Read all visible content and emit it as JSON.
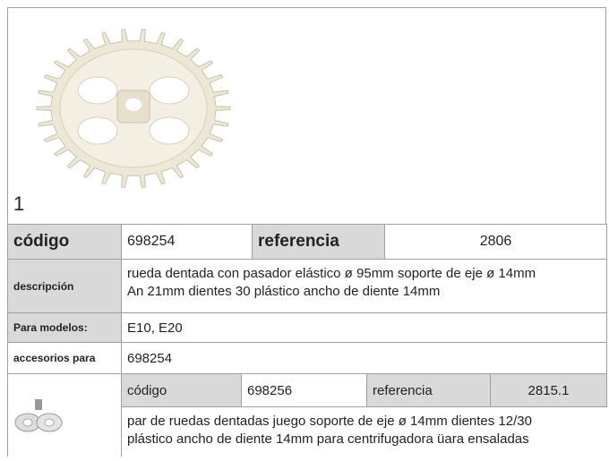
{
  "figure_number": "1",
  "product": {
    "code_label": "código",
    "code": "698254",
    "reference_label": "referencia",
    "reference": "2806",
    "description_label": "descripción",
    "description": [
      "rueda dentada  con pasador elástico ø 95mm soporte de eje ø 14mm",
      "An 21mm dientes 30 plástico ancho de diente 14mm"
    ],
    "models_label": "Para modelos:",
    "models": "E10, E20",
    "accessories_label": "accesorios para",
    "accessories": "698254"
  },
  "accessory": {
    "code_label": "código",
    "code": "698256",
    "reference_label": "referencia",
    "reference": "2815.1",
    "description": [
      "par de ruedas dentadas  juego soporte de eje ø 14mm dientes 12/30",
      "plástico ancho de diente 14mm para centrifugadora üara ensaladas"
    ]
  }
}
